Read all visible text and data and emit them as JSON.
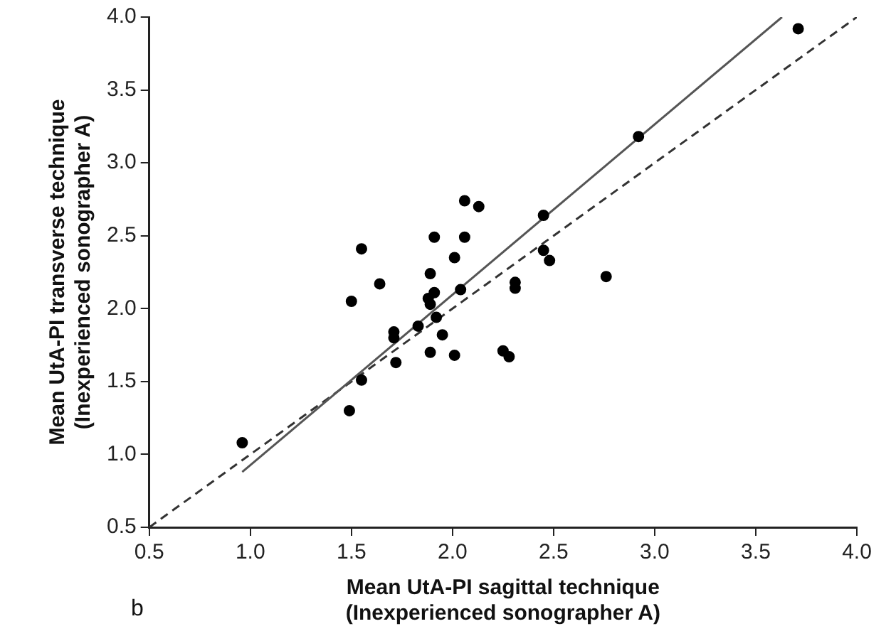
{
  "chart_data": {
    "type": "scatter",
    "xlabel": "Mean UtA-PI sagittal technique\n(Inexperienced sonographer A)",
    "ylabel": "Mean UtA-PI transverse technique\n(Inexperienced sonographer A)",
    "xlim": [
      0.5,
      4.0
    ],
    "ylim": [
      0.5,
      4.0
    ],
    "xticks": [
      {
        "value": 0.5,
        "label": "0.5"
      },
      {
        "value": 1,
        "label": "1.0"
      },
      {
        "value": 1.5,
        "label": "1.5"
      },
      {
        "value": 2,
        "label": "2.0"
      },
      {
        "value": 2.5,
        "label": "2.5"
      },
      {
        "value": 3,
        "label": "3.0"
      },
      {
        "value": 3.5,
        "label": "3.5"
      },
      {
        "value": 4,
        "label": "4.0"
      }
    ],
    "yticks": [
      {
        "value": 0.5,
        "label": "0.5"
      },
      {
        "value": 1,
        "label": "1.0"
      },
      {
        "value": 1.5,
        "label": "1.5"
      },
      {
        "value": 2,
        "label": "2.0"
      },
      {
        "value": 2.5,
        "label": "2.5"
      },
      {
        "value": 3,
        "label": "3.0"
      },
      {
        "value": 3.5,
        "label": "3.5"
      },
      {
        "value": 4,
        "label": "4.0"
      }
    ],
    "grid": false,
    "legend": false,
    "annotations": [
      "b"
    ],
    "series": [
      {
        "type": "scatter",
        "marker": "circle",
        "color": "#000000",
        "x": [
          0.96,
          1.49,
          1.55,
          1.5,
          1.55,
          1.64,
          1.71,
          1.71,
          1.72,
          1.83,
          1.89,
          1.89,
          1.91,
          1.88,
          1.91,
          1.89,
          1.92,
          1.95,
          2.01,
          2.01,
          2.04,
          2.06,
          2.06,
          2.13,
          2.25,
          2.28,
          2.31,
          2.31,
          3.71,
          2.92,
          2.45,
          2.45,
          2.48,
          2.76
        ],
        "values": [
          1.08,
          1.3,
          1.51,
          2.05,
          2.41,
          2.17,
          1.84,
          1.8,
          1.63,
          1.88,
          1.7,
          2.24,
          2.49,
          2.07,
          2.11,
          2.03,
          1.94,
          1.82,
          1.68,
          2.35,
          2.13,
          2.49,
          2.74,
          2.7,
          1.71,
          1.67,
          2.18,
          2.14,
          3.92,
          3.18,
          2.64,
          2.4,
          2.33,
          2.22
        ]
      },
      {
        "type": "line",
        "marker": "none",
        "color": "#555555",
        "line_style": "solid",
        "x": [
          0.96,
          3.63
        ],
        "values": [
          0.88,
          4.0
        ]
      },
      {
        "type": "line",
        "marker": "none",
        "color": "#333333",
        "line_style": "dashed",
        "x": [
          0.5,
          4.0
        ],
        "values": [
          0.5,
          4.0
        ]
      }
    ]
  }
}
